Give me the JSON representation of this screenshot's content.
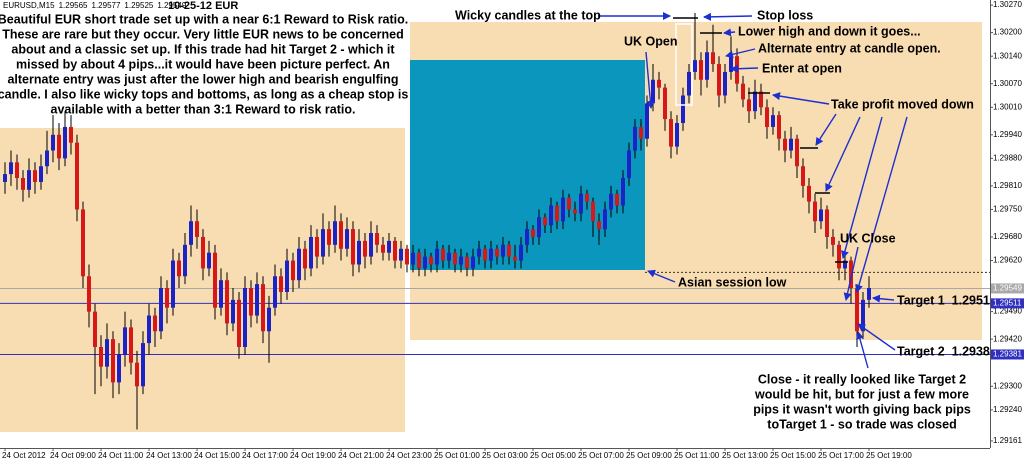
{
  "chart_data": {
    "type": "candlestick",
    "title": "10-25-12  EUR",
    "symbol": "EURUSD,M15",
    "header_values": [
      1.29565,
      1.29577,
      1.29525,
      1.29549
    ],
    "up_color": "#1a22c8",
    "down_color": "#d81818",
    "ylim": [
      1.29143,
      1.30283
    ],
    "yticks": [
      {
        "value": 1.3027,
        "label": "1.30270"
      },
      {
        "value": 1.302,
        "label": "1.30200"
      },
      {
        "value": 1.3014,
        "label": "1.30140"
      },
      {
        "value": 1.3007,
        "label": "1.30070"
      },
      {
        "value": 1.3001,
        "label": "1.30010"
      },
      {
        "value": 1.2994,
        "label": "1.29940"
      },
      {
        "value": 1.2988,
        "label": "1.29880"
      },
      {
        "value": 1.2981,
        "label": "1.29810"
      },
      {
        "value": 1.2975,
        "label": "1.29750"
      },
      {
        "value": 1.2968,
        "label": "1.29680"
      },
      {
        "value": 1.2962,
        "label": "1.29620"
      },
      {
        "value": 1.2949,
        "label": "1.29490"
      },
      {
        "value": 1.2942,
        "label": "1.29420"
      },
      {
        "value": 1.293,
        "label": "1.29300"
      },
      {
        "value": 1.2924,
        "label": "1.29240"
      },
      1.29161
    ],
    "price_lines": [
      {
        "value": 1.29549,
        "color": "#a8a8a8"
      },
      {
        "value": 1.29511,
        "color": "#3030c0"
      },
      {
        "value": 1.29381,
        "color": "#3030c0"
      }
    ],
    "session_low": 1.2959,
    "x": [
      "24 Oct 2012",
      null,
      null,
      null,
      null,
      null,
      null,
      null,
      "24 Oct 09:00",
      null,
      null,
      null,
      null,
      null,
      null,
      null,
      "24 Oct 11:00",
      null,
      null,
      null,
      null,
      null,
      null,
      null,
      "24 Oct 13:00",
      null,
      null,
      null,
      null,
      null,
      null,
      null,
      "24 Oct 15:00",
      null,
      null,
      null,
      null,
      null,
      null,
      null,
      "24 Oct 17:00",
      null,
      null,
      null,
      null,
      null,
      null,
      null,
      "24 Oct 19:00",
      null,
      null,
      null,
      null,
      null,
      null,
      null,
      "24 Oct 21:00",
      null,
      null,
      null,
      null,
      null,
      null,
      null,
      "24 Oct 23:00",
      null,
      null,
      null,
      null,
      null,
      null,
      null,
      "25 Oct 01:00",
      null,
      null,
      null,
      null,
      null,
      null,
      null,
      "25 Oct 03:00",
      null,
      null,
      null,
      null,
      null,
      null,
      null,
      "25 Oct 05:00",
      null,
      null,
      null,
      null,
      null,
      null,
      null,
      "25 Oct 07:00",
      null,
      null,
      null,
      null,
      null,
      null,
      null,
      "25 Oct 09:00",
      null,
      null,
      null,
      null,
      null,
      null,
      null,
      "25 Oct 11:00",
      null,
      null,
      null,
      null,
      null,
      null,
      null,
      "25 Oct 13:00",
      null,
      null,
      null,
      null,
      null,
      null,
      null,
      "25 Oct 15:00",
      null,
      null,
      null,
      null,
      null,
      null,
      null,
      "25 Oct 17:00",
      null,
      null,
      null,
      null,
      null,
      null,
      null,
      "25 Oct 19:00"
    ],
    "ohlc": [
      [
        1.2982,
        1.2987,
        1.2979,
        1.2984
      ],
      [
        1.2984,
        1.299,
        1.2981,
        1.2987
      ],
      [
        1.2987,
        1.2989,
        1.298,
        1.2983
      ],
      [
        1.2983,
        1.2985,
        1.2977,
        1.298
      ],
      [
        1.298,
        1.2988,
        1.2978,
        1.2985
      ],
      [
        1.2985,
        1.2987,
        1.2979,
        1.2982
      ],
      [
        1.2982,
        1.2989,
        1.298,
        1.2986
      ],
      [
        1.2986,
        1.2995,
        1.2984,
        1.299
      ],
      [
        1.299,
        1.2999,
        1.2987,
        1.2994
      ],
      [
        1.2994,
        1.2997,
        1.2985,
        1.2988
      ],
      [
        1.2988,
        1.3,
        1.2986,
        1.2996
      ],
      [
        1.2996,
        1.2999,
        1.2989,
        1.2992
      ],
      [
        1.2992,
        1.2994,
        1.2972,
        1.2975
      ],
      [
        1.2975,
        1.2977,
        1.2955,
        1.2958
      ],
      [
        1.2958,
        1.2961,
        1.2945,
        1.2949
      ],
      [
        1.2949,
        1.2951,
        1.2928,
        1.294
      ],
      [
        1.294,
        1.2943,
        1.293,
        1.2935
      ],
      [
        1.2935,
        1.2946,
        1.2932,
        1.2942
      ],
      [
        1.2942,
        1.2944,
        1.2927,
        1.2931
      ],
      [
        1.2931,
        1.2941,
        1.2928,
        1.2938
      ],
      [
        1.2938,
        1.2949,
        1.2935,
        1.2945
      ],
      [
        1.2945,
        1.2947,
        1.2933,
        1.2936
      ],
      [
        1.2936,
        1.2939,
        1.2919,
        1.293
      ],
      [
        1.293,
        1.2944,
        1.2928,
        1.2941
      ],
      [
        1.2941,
        1.2951,
        1.2938,
        1.2948
      ],
      [
        1.2948,
        1.295,
        1.294,
        1.2944
      ],
      [
        1.2944,
        1.2958,
        1.2942,
        1.2955
      ],
      [
        1.2955,
        1.2957,
        1.2946,
        1.295
      ],
      [
        1.295,
        1.2965,
        1.2948,
        1.2962
      ],
      [
        1.2962,
        1.2964,
        1.2955,
        1.2958
      ],
      [
        1.2958,
        1.2969,
        1.2956,
        1.2966
      ],
      [
        1.2966,
        1.2976,
        1.2963,
        1.2972
      ],
      [
        1.2972,
        1.2975,
        1.2965,
        1.2968
      ],
      [
        1.2968,
        1.297,
        1.2957,
        1.296
      ],
      [
        1.296,
        1.2967,
        1.2958,
        1.2964
      ],
      [
        1.2964,
        1.2966,
        1.2947,
        1.295
      ],
      [
        1.295,
        1.296,
        1.2948,
        1.2957
      ],
      [
        1.2957,
        1.2959,
        1.2943,
        1.2946
      ],
      [
        1.2946,
        1.2955,
        1.2944,
        1.2952
      ],
      [
        1.2952,
        1.2954,
        1.2937,
        1.294
      ],
      [
        1.294,
        1.2958,
        1.2938,
        1.2955
      ],
      [
        1.2955,
        1.2957,
        1.2945,
        1.2948
      ],
      [
        1.2948,
        1.2959,
        1.2946,
        1.2956
      ],
      [
        1.2956,
        1.2958,
        1.2941,
        1.2944
      ],
      [
        1.2944,
        1.2953,
        1.2936,
        1.295
      ],
      [
        1.295,
        1.2961,
        1.2948,
        1.2958
      ],
      [
        1.2958,
        1.296,
        1.2951,
        1.2954
      ],
      [
        1.2954,
        1.2965,
        1.2952,
        1.2962
      ],
      [
        1.2962,
        1.2964,
        1.2954,
        1.2957
      ],
      [
        1.2957,
        1.2968,
        1.2955,
        1.2965
      ],
      [
        1.2965,
        1.2967,
        1.2957,
        1.296
      ],
      [
        1.296,
        1.2971,
        1.2958,
        1.2968
      ],
      [
        1.2968,
        1.297,
        1.296,
        1.2963
      ],
      [
        1.2963,
        1.2974,
        1.2961,
        1.297
      ],
      [
        1.297,
        1.2972,
        1.2963,
        1.2966
      ],
      [
        1.2966,
        1.2976,
        1.2964,
        1.2972
      ],
      [
        1.2972,
        1.2974,
        1.2962,
        1.2965
      ],
      [
        1.2965,
        1.2973,
        1.2963,
        1.297
      ],
      [
        1.297,
        1.2972,
        1.2958,
        1.2961
      ],
      [
        1.2961,
        1.297,
        1.2959,
        1.2967
      ],
      [
        1.2967,
        1.2969,
        1.296,
        1.2963
      ],
      [
        1.2963,
        1.2972,
        1.2961,
        1.2969
      ],
      [
        1.2969,
        1.2971,
        1.2964,
        1.2966
      ],
      [
        1.2966,
        1.2968,
        1.2962,
        1.2964
      ],
      [
        1.2964,
        1.2969,
        1.2962,
        1.2967
      ],
      [
        1.2967,
        1.2968,
        1.296,
        1.2962
      ],
      [
        1.2962,
        1.2967,
        1.296,
        1.2965
      ],
      [
        1.2965,
        1.2966,
        1.2959,
        1.2961
      ],
      [
        1.2961,
        1.2966,
        1.2959,
        1.2964
      ],
      [
        1.2964,
        1.2965,
        1.2958,
        1.296
      ],
      [
        1.296,
        1.2965,
        1.2958,
        1.2963
      ],
      [
        1.2963,
        1.2964,
        1.2959,
        1.2961
      ],
      [
        1.2961,
        1.2967,
        1.2959,
        1.2965
      ],
      [
        1.2965,
        1.2966,
        1.296,
        1.2962
      ],
      [
        1.2962,
        1.2966,
        1.296,
        1.2964
      ],
      [
        1.2964,
        1.2965,
        1.2959,
        1.2961
      ],
      [
        1.2961,
        1.2965,
        1.2959,
        1.2963
      ],
      [
        1.2963,
        1.2964,
        1.2958,
        1.296
      ],
      [
        1.296,
        1.2965,
        1.2958,
        1.2963
      ],
      [
        1.2963,
        1.2967,
        1.2961,
        1.2965
      ],
      [
        1.2965,
        1.2966,
        1.296,
        1.2962
      ],
      [
        1.2962,
        1.2967,
        1.296,
        1.2965
      ],
      [
        1.2965,
        1.2966,
        1.2961,
        1.2963
      ],
      [
        1.2963,
        1.2968,
        1.2961,
        1.2966
      ],
      [
        1.2966,
        1.2967,
        1.2961,
        1.2963
      ],
      [
        1.2963,
        1.2966,
        1.296,
        1.2962
      ],
      [
        1.2962,
        1.2968,
        1.296,
        1.2966
      ],
      [
        1.2966,
        1.2972,
        1.2964,
        1.297
      ],
      [
        1.297,
        1.2971,
        1.2966,
        1.2968
      ],
      [
        1.2968,
        1.2975,
        1.2966,
        1.2973
      ],
      [
        1.2973,
        1.2974,
        1.2969,
        1.2971
      ],
      [
        1.2971,
        1.2978,
        1.2969,
        1.2976
      ],
      [
        1.2976,
        1.2977,
        1.297,
        1.2972
      ],
      [
        1.2972,
        1.298,
        1.297,
        1.2978
      ],
      [
        1.2978,
        1.2979,
        1.2973,
        1.2975
      ],
      [
        1.2975,
        1.2977,
        1.2972,
        1.2974
      ],
      [
        1.2974,
        1.2981,
        1.2972,
        1.2979
      ],
      [
        1.2979,
        1.298,
        1.2975,
        1.2977
      ],
      [
        1.2977,
        1.2978,
        1.2968,
        1.2972
      ],
      [
        1.2972,
        1.2974,
        1.2966,
        1.297
      ],
      [
        1.297,
        1.2977,
        1.2968,
        1.2975
      ],
      [
        1.2975,
        1.2981,
        1.2973,
        1.2979
      ],
      [
        1.2979,
        1.298,
        1.2974,
        1.2976
      ],
      [
        1.2976,
        1.2985,
        1.2974,
        1.2983
      ],
      [
        1.2983,
        1.2992,
        1.2981,
        1.299
      ],
      [
        1.299,
        1.2998,
        1.2988,
        1.2996
      ],
      [
        1.2996,
        1.2998,
        1.299,
        1.2993
      ],
      [
        1.2993,
        1.3004,
        1.2991,
        1.3002
      ],
      [
        1.3002,
        1.3012,
        1.3,
        1.3008
      ],
      [
        1.3008,
        1.301,
        1.3003,
        1.3006
      ],
      [
        1.3006,
        1.3007,
        1.2995,
        1.2998
      ],
      [
        1.2998,
        1.3,
        1.2988,
        1.2991
      ],
      [
        1.2991,
        1.2999,
        1.2989,
        1.2997
      ],
      [
        1.2997,
        1.3006,
        1.2995,
        1.3004
      ],
      [
        1.3004,
        1.3012,
        1.3002,
        1.301
      ],
      [
        1.301,
        1.3025,
        1.3008,
        1.3013
      ],
      [
        1.3013,
        1.3015,
        1.3004,
        1.3008
      ],
      [
        1.3008,
        1.3018,
        1.3006,
        1.3015
      ],
      [
        1.3015,
        1.3022,
        1.301,
        1.3012
      ],
      [
        1.3012,
        1.3014,
        1.3001,
        1.3004
      ],
      [
        1.3004,
        1.3012,
        1.3002,
        1.301
      ],
      [
        1.301,
        1.3019,
        1.3008,
        1.3014
      ],
      [
        1.3014,
        1.3016,
        1.3005,
        1.3007
      ],
      [
        1.3007,
        1.3009,
        1.3001,
        1.3003
      ],
      [
        1.3003,
        1.3006,
        1.2997,
        1.3
      ],
      [
        1.3,
        1.3008,
        1.2998,
        1.3005
      ],
      [
        1.3005,
        1.3007,
        1.2999,
        1.3001
      ],
      [
        1.3001,
        1.3003,
        1.2993,
        1.2996
      ],
      [
        1.2996,
        1.3001,
        1.2994,
        1.2999
      ],
      [
        1.2999,
        1.3,
        1.299,
        1.2993
      ],
      [
        1.2993,
        1.2995,
        1.2987,
        1.299
      ],
      [
        1.299,
        1.2996,
        1.2988,
        1.2993
      ],
      [
        1.2993,
        1.2994,
        1.2983,
        1.2986
      ],
      [
        1.2986,
        1.2988,
        1.2978,
        1.2981
      ],
      [
        1.2981,
        1.2983,
        1.2974,
        1.2977
      ],
      [
        1.2977,
        1.2979,
        1.2969,
        1.2972
      ],
      [
        1.2972,
        1.2978,
        1.297,
        1.2975
      ],
      [
        1.2975,
        1.2976,
        1.2965,
        1.2968
      ],
      [
        1.2968,
        1.297,
        1.2963,
        1.2966
      ],
      [
        1.2966,
        1.2967,
        1.2957,
        1.296
      ],
      [
        1.296,
        1.2964,
        1.2957,
        1.2962
      ],
      [
        1.2962,
        1.2963,
        1.2951,
        1.2955
      ],
      [
        1.2955,
        1.2956,
        1.294,
        1.2944
      ],
      [
        1.2944,
        1.2954,
        1.2942,
        1.2952
      ],
      [
        1.2952,
        1.2958,
        1.295,
        1.2955
      ]
    ],
    "summary": [
      "Beautiful EUR short trade set up with a near 6:1 Reward to Risk ratio.",
      "These are rare but they occur.  Very little EUR news to be concerned",
      "about and a classic set up.  If this trade had hit Target 2 - which it",
      "missed by about 4 pips...it would have been picture perfect.  An",
      "alternate entry was just after the lower high and bearish engulfing",
      "candle.  I also like wicky tops and bottoms, as long as a cheap stop is",
      "available with a better than 3:1 Reward to risk ratio."
    ],
    "annotations": [
      "Wicky candles at the top",
      "Stop loss",
      "Lower high and down it goes...",
      "UK Open",
      "Alternate entry at candle open.",
      "Enter at open",
      "Take profit moved down",
      "UK Close",
      "Asian session low",
      "Target 1  1.2951",
      "Target 2  1.2938"
    ],
    "close_note": [
      "Close - it really looked like Target 2",
      "would be hit, but for just a few more",
      "pips it wasn't worth giving back pips",
      "toTarget 1 - so trade was closed"
    ]
  }
}
